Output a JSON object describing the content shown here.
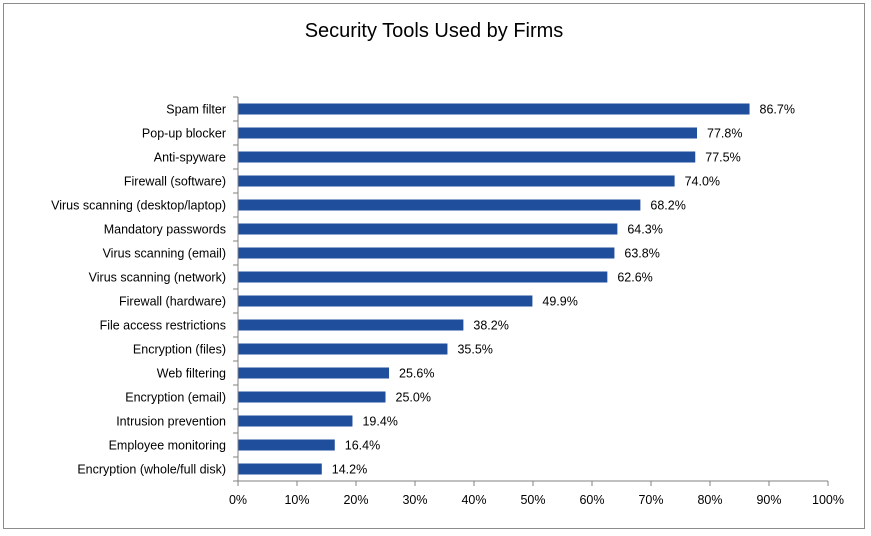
{
  "chart_data": {
    "type": "bar",
    "orientation": "horizontal",
    "title": "Security Tools Used by Firms",
    "xlabel": "",
    "ylabel": "",
    "xlim": [
      0,
      100
    ],
    "x_ticks": [
      "0%",
      "10%",
      "20%",
      "30%",
      "40%",
      "50%",
      "60%",
      "70%",
      "80%",
      "90%",
      "100%"
    ],
    "grid": false,
    "legend": "none",
    "bar_color": "#1f4e9c",
    "categories": [
      "Spam filter",
      "Pop-up blocker",
      "Anti-spyware",
      "Firewall (software)",
      "Virus scanning (desktop/laptop)",
      "Mandatory passwords",
      "Virus scanning (email)",
      "Virus scanning (network)",
      "Firewall (hardware)",
      "File access restrictions",
      "Encryption (files)",
      "Web filtering",
      "Encryption (email)",
      "Intrusion prevention",
      "Employee monitoring",
      "Encryption (whole/full disk)"
    ],
    "values": [
      86.7,
      77.8,
      77.5,
      74.0,
      68.2,
      64.3,
      63.8,
      62.6,
      49.9,
      38.2,
      35.5,
      25.6,
      25.0,
      19.4,
      16.4,
      14.2
    ],
    "value_labels": [
      "86.7%",
      "77.8%",
      "77.5%",
      "74.0%",
      "68.2%",
      "64.3%",
      "63.8%",
      "62.6%",
      "49.9%",
      "38.2%",
      "35.5%",
      "25.6%",
      "25.0%",
      "19.4%",
      "16.4%",
      "14.2%"
    ]
  }
}
